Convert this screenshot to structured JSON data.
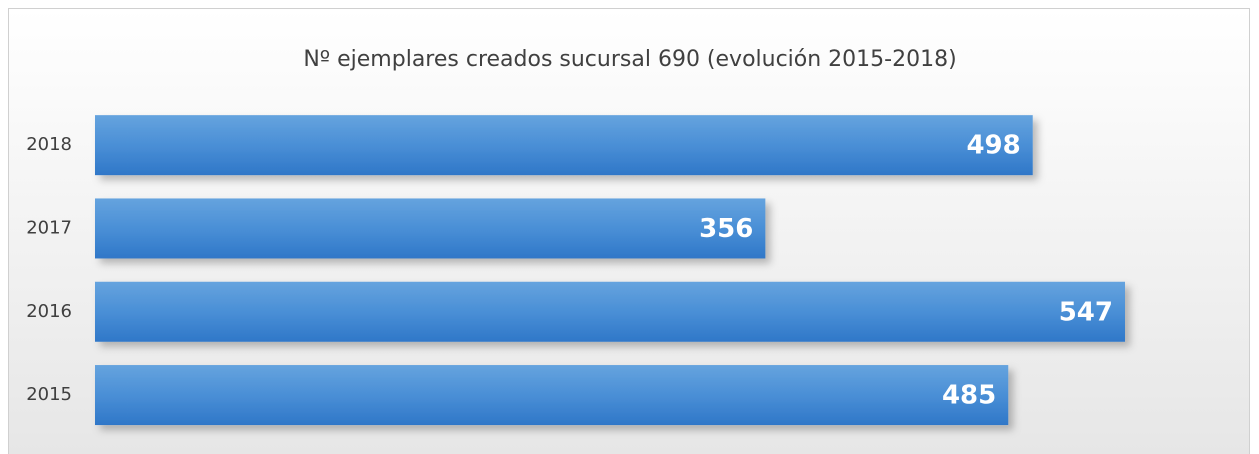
{
  "chart_data": {
    "type": "bar",
    "orientation": "horizontal",
    "title": "Nº ejemplares creados sucursal 690 (evolución 2015-2018)",
    "categories": [
      "2018",
      "2017",
      "2016",
      "2015"
    ],
    "values": [
      498,
      356,
      547,
      485
    ],
    "color": "#3f86d2"
  }
}
